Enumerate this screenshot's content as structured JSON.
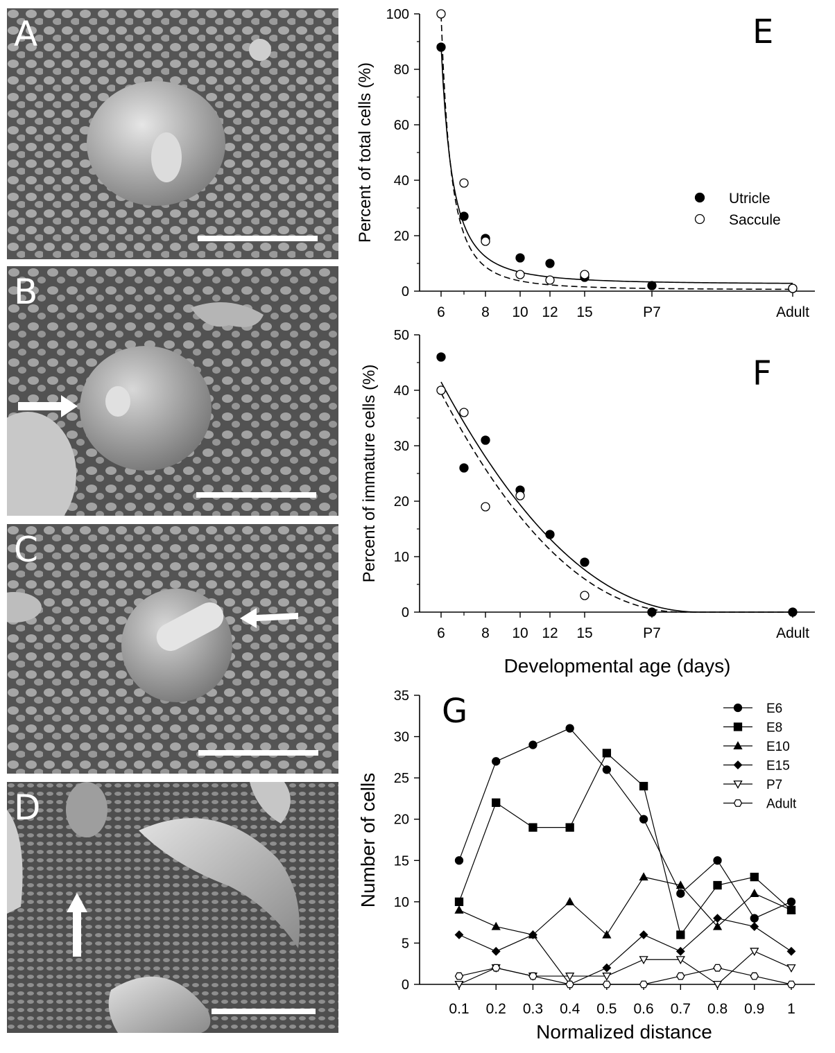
{
  "panels": {
    "A": {
      "label": "A"
    },
    "B": {
      "label": "B"
    },
    "C": {
      "label": "C"
    },
    "D": {
      "label": "D"
    }
  },
  "colors": {
    "sem_bg": "#6b6b6b",
    "sem_blob": "#bdbdbd",
    "scale_bar": "#ffffff"
  },
  "chart_data": [
    {
      "panel": "E",
      "type": "scatter",
      "xlabel": "",
      "ylabel": "Percent of total cells (%)",
      "ylim": [
        0,
        100
      ],
      "yticks": [
        0,
        20,
        40,
        60,
        80,
        100
      ],
      "xtick_labels": [
        "6",
        "8",
        "10",
        "12",
        "15",
        "P7",
        "Adult"
      ],
      "legend": [
        "Utricle",
        "Saccule"
      ],
      "legend_position": "right-middle",
      "series": [
        {
          "name": "Utricle",
          "marker": "filled-circle",
          "line": "solid",
          "x": [
            "6",
            "7",
            "8",
            "10",
            "12",
            "15",
            "P7",
            "Adult"
          ],
          "y": [
            88,
            27,
            19,
            12,
            10,
            5,
            2,
            1
          ]
        },
        {
          "name": "Saccule",
          "marker": "open-circle",
          "line": "dashed",
          "x": [
            "6",
            "7",
            "8",
            "10",
            "12",
            "15",
            "Adult"
          ],
          "y": [
            100,
            39,
            18,
            6,
            4,
            6,
            1
          ]
        }
      ]
    },
    {
      "panel": "F",
      "type": "scatter",
      "xlabel": "Developmental age (days)",
      "ylabel": "Percent of immature cells (%)",
      "ylim": [
        0,
        50
      ],
      "yticks": [
        0,
        10,
        20,
        30,
        40,
        50
      ],
      "xtick_labels": [
        "6",
        "8",
        "10",
        "12",
        "15",
        "P7",
        "Adult"
      ],
      "series": [
        {
          "name": "Utricle",
          "marker": "filled-circle",
          "line": "solid",
          "x": [
            "6",
            "7",
            "8",
            "10",
            "12",
            "15",
            "P7",
            "Adult"
          ],
          "y": [
            46,
            26,
            31,
            22,
            14,
            9,
            0,
            0
          ]
        },
        {
          "name": "Saccule",
          "marker": "open-circle",
          "line": "dashed",
          "x": [
            "6",
            "7",
            "8",
            "10",
            "15"
          ],
          "y": [
            40,
            36,
            19,
            21,
            3
          ]
        }
      ]
    },
    {
      "panel": "G",
      "type": "line",
      "xlabel": "Normalized distance",
      "ylabel": "Number of cells",
      "ylim": [
        0,
        35
      ],
      "yticks": [
        0,
        5,
        10,
        15,
        20,
        25,
        30,
        35
      ],
      "x": [
        0.1,
        0.2,
        0.3,
        0.4,
        0.5,
        0.6,
        0.7,
        0.8,
        0.9,
        1
      ],
      "xtick_labels": [
        "0.1",
        "0.2",
        "0.3",
        "0.4",
        "0.5",
        "0.6",
        "0.7",
        "0.8",
        "0.9",
        "1"
      ],
      "legend_position": "top-right",
      "series": [
        {
          "name": "E6",
          "marker": "filled-circle",
          "values": [
            15,
            27,
            29,
            31,
            26,
            20,
            11,
            15,
            8,
            10
          ]
        },
        {
          "name": "E8",
          "marker": "filled-square",
          "values": [
            10,
            22,
            19,
            19,
            28,
            24,
            6,
            12,
            13,
            9
          ]
        },
        {
          "name": "E10",
          "marker": "filled-triangle",
          "values": [
            9,
            7,
            6,
            10,
            6,
            13,
            12,
            7,
            11,
            9
          ]
        },
        {
          "name": "E15",
          "marker": "filled-diamond",
          "values": [
            6,
            4,
            6,
            0,
            2,
            6,
            4,
            8,
            7,
            4
          ]
        },
        {
          "name": "P7",
          "marker": "open-triangle-down",
          "values": [
            0,
            2,
            1,
            1,
            1,
            3,
            3,
            0,
            4,
            2
          ]
        },
        {
          "name": "Adult",
          "marker": "open-hexagon",
          "values": [
            1,
            2,
            1,
            0,
            0,
            0,
            1,
            2,
            1,
            0
          ]
        }
      ]
    }
  ],
  "graph_letters": {
    "E": "E",
    "F": "F",
    "G": "G"
  }
}
